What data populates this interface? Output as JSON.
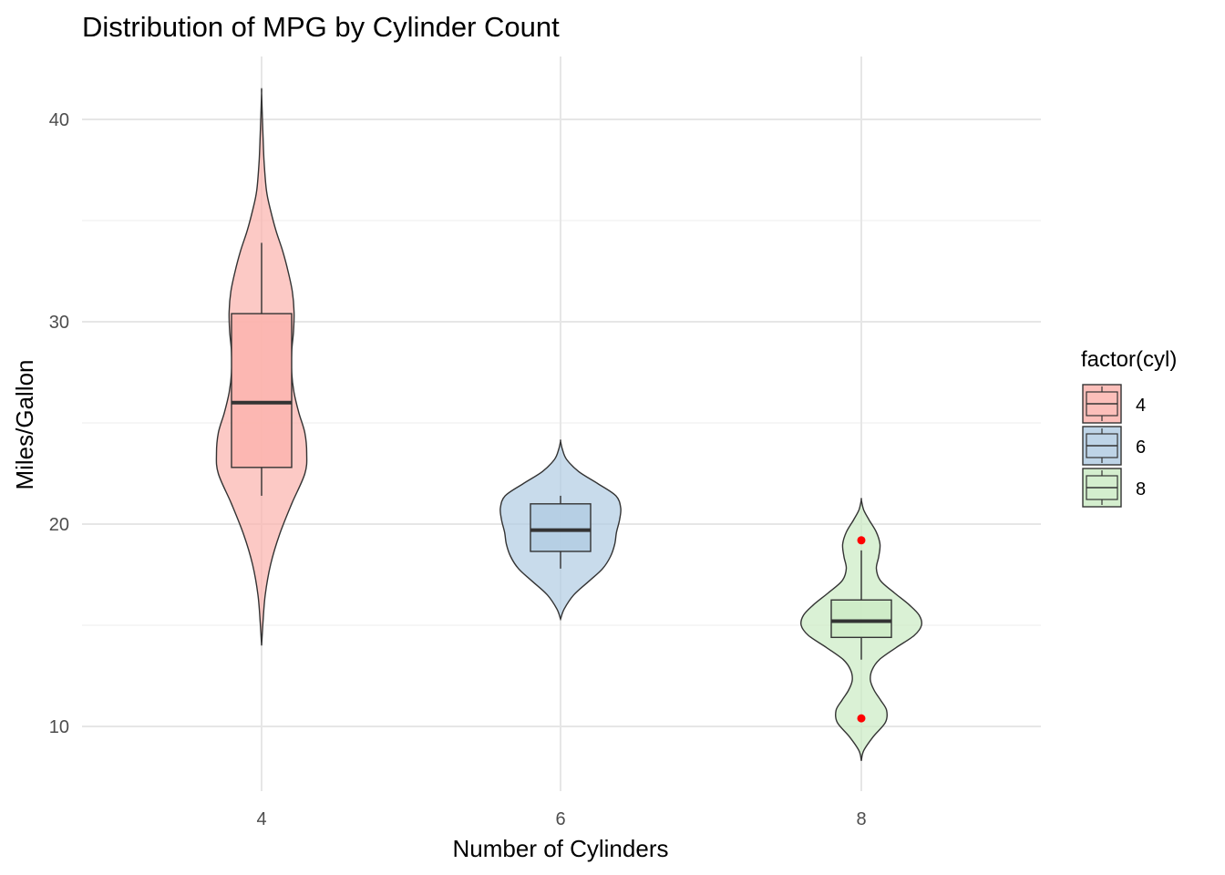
{
  "chart_data": {
    "type": "violin",
    "title": "Distribution of MPG by Cylinder Count",
    "xlabel": "Number of Cylinders",
    "ylabel": "Miles/Gallon",
    "categories": [
      "4",
      "6",
      "8"
    ],
    "y_ticks": [
      10,
      20,
      30,
      40
    ],
    "ylim": [
      7.4,
      42.8
    ],
    "grid": true,
    "legend": {
      "title": "factor(cyl)",
      "placement": "right",
      "entries": [
        "4",
        "6",
        "8"
      ]
    },
    "series": [
      {
        "category": "4",
        "fill": "#FBB4AE",
        "box": {
          "q1": 22.8,
          "median": 26.0,
          "q3": 30.4,
          "whisker_low": 21.4,
          "whisker_high": 33.9
        },
        "outliers": [],
        "violin_range": [
          14.0,
          41.3
        ],
        "density_profile": [
          [
            14.0,
            0.0
          ],
          [
            15.0,
            0.02
          ],
          [
            16.5,
            0.06
          ],
          [
            18.0,
            0.15
          ],
          [
            19.5,
            0.3
          ],
          [
            21.0,
            0.5
          ],
          [
            22.5,
            0.72
          ],
          [
            23.5,
            0.75
          ],
          [
            24.5,
            0.72
          ],
          [
            25.5,
            0.62
          ],
          [
            26.5,
            0.54
          ],
          [
            27.5,
            0.5
          ],
          [
            28.5,
            0.5
          ],
          [
            29.5,
            0.53
          ],
          [
            30.5,
            0.54
          ],
          [
            31.5,
            0.51
          ],
          [
            32.5,
            0.44
          ],
          [
            33.5,
            0.35
          ],
          [
            34.5,
            0.24
          ],
          [
            35.5,
            0.15
          ],
          [
            36.5,
            0.08
          ],
          [
            38.0,
            0.04
          ],
          [
            39.5,
            0.02
          ],
          [
            41.3,
            0.0
          ]
        ]
      },
      {
        "category": "6",
        "fill": "#B3CDE3",
        "box": {
          "q1": 18.65,
          "median": 19.7,
          "q3": 21.0,
          "whisker_low": 17.8,
          "whisker_high": 21.4
        },
        "outliers": [],
        "violin_range": [
          15.3,
          24.1
        ],
        "density_profile": [
          [
            15.3,
            0.0
          ],
          [
            15.8,
            0.06
          ],
          [
            16.5,
            0.22
          ],
          [
            17.2,
            0.48
          ],
          [
            17.8,
            0.7
          ],
          [
            18.4,
            0.83
          ],
          [
            19.0,
            0.9
          ],
          [
            19.6,
            0.93
          ],
          [
            20.2,
            0.98
          ],
          [
            20.8,
            1.0
          ],
          [
            21.4,
            0.92
          ],
          [
            22.0,
            0.62
          ],
          [
            22.6,
            0.3
          ],
          [
            23.2,
            0.1
          ],
          [
            23.7,
            0.03
          ],
          [
            24.1,
            0.0
          ]
        ]
      },
      {
        "category": "8",
        "fill": "#CCEBC5",
        "box": {
          "q1": 14.4,
          "median": 15.2,
          "q3": 16.25,
          "whisker_low": 13.3,
          "whisker_high": 18.7
        },
        "outliers": [
          19.2,
          10.4
        ],
        "violin_range": [
          8.3,
          21.2
        ],
        "density_profile": [
          [
            8.3,
            0.0
          ],
          [
            8.8,
            0.04
          ],
          [
            9.5,
            0.2
          ],
          [
            10.2,
            0.4
          ],
          [
            10.8,
            0.42
          ],
          [
            11.3,
            0.32
          ],
          [
            11.8,
            0.21
          ],
          [
            12.3,
            0.15
          ],
          [
            12.8,
            0.18
          ],
          [
            13.3,
            0.3
          ],
          [
            13.9,
            0.58
          ],
          [
            14.5,
            0.88
          ],
          [
            15.0,
            1.0
          ],
          [
            15.5,
            0.96
          ],
          [
            16.0,
            0.8
          ],
          [
            16.6,
            0.55
          ],
          [
            17.2,
            0.32
          ],
          [
            17.8,
            0.25
          ],
          [
            18.4,
            0.29
          ],
          [
            19.0,
            0.31
          ],
          [
            19.6,
            0.25
          ],
          [
            20.2,
            0.13
          ],
          [
            20.7,
            0.04
          ],
          [
            21.2,
            0.0
          ]
        ]
      }
    ],
    "outlier_color": "#FF0000"
  }
}
